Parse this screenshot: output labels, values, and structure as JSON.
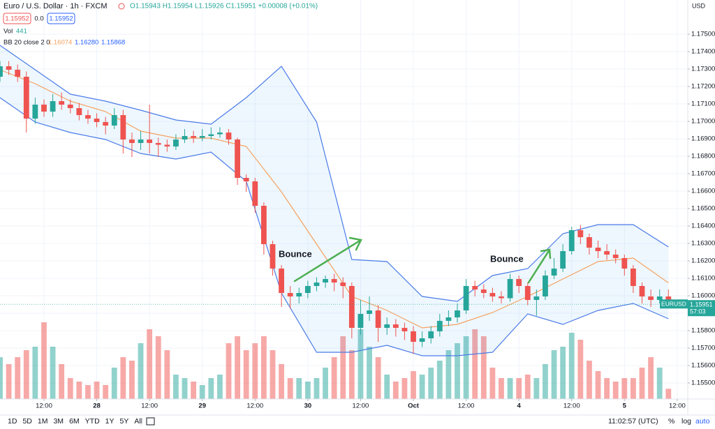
{
  "header": {
    "symbol": "Euro / U.S. Dollar · 1h · FXCM",
    "ohlc": "O1.15943 H1.15954 L1.15926 C1.15951 +0.00008 (+0.01%)",
    "bid": "1.15952",
    "spread": "0.0",
    "ask": "1.15952",
    "vol_label": "Vol",
    "bb_label": "BB 20 close 2 0",
    "bb_values": [
      "1.16074",
      "1.16280",
      "1.15868"
    ],
    "currency": "USD"
  },
  "price_tag": {
    "symbol": "EURUSD",
    "countdown": "57:03"
  },
  "toolbar": {
    "ranges": [
      "1D",
      "5D",
      "1M",
      "3M",
      "6M",
      "YTD",
      "1Y",
      "5Y",
      "All"
    ],
    "time": "11:02:57 (UTC)",
    "percent": "%",
    "log": "log",
    "auto": "auto"
  },
  "chart_data": {
    "type": "candlestick",
    "up_color": "#26a69a",
    "down_color": "#ef5350",
    "grid": true,
    "xlim": [
      0,
      78.2
    ],
    "ylim": [
      1.15408,
      1.17696
    ],
    "vlim": [
      0,
      4200
    ],
    "xticks": [
      {
        "value": 5,
        "label": "12:00"
      },
      {
        "value": 11,
        "label": "28"
      },
      {
        "value": 17,
        "label": "12:00"
      },
      {
        "value": 23,
        "label": "29"
      },
      {
        "value": 29,
        "label": "12:00"
      },
      {
        "value": 35,
        "label": "30"
      },
      {
        "value": 41,
        "label": "12:00"
      },
      {
        "value": 47,
        "label": "Oct"
      },
      {
        "value": 53,
        "label": "12:00"
      },
      {
        "value": 59,
        "label": "4"
      },
      {
        "value": 65,
        "label": "12:00"
      },
      {
        "value": 71,
        "label": "5"
      },
      {
        "value": 77,
        "label": "12:00"
      }
    ],
    "yticks": [
      {
        "value": 1.155,
        "label": "1.15500"
      },
      {
        "value": 1.156,
        "label": "1.15600"
      },
      {
        "value": 1.157,
        "label": "1.15700"
      },
      {
        "value": 1.158,
        "label": "1.15800"
      },
      {
        "value": 1.159,
        "label": "1.15900"
      },
      {
        "value": 1.16,
        "label": "1.16000"
      },
      {
        "value": 1.161,
        "label": "1.16100"
      },
      {
        "value": 1.162,
        "label": "1.16200"
      },
      {
        "value": 1.163,
        "label": "1.16300"
      },
      {
        "value": 1.164,
        "label": "1.16400"
      },
      {
        "value": 1.165,
        "label": "1.16500"
      },
      {
        "value": 1.166,
        "label": "1.16600"
      },
      {
        "value": 1.167,
        "label": "1.16700"
      },
      {
        "value": 1.168,
        "label": "1.16800"
      },
      {
        "value": 1.169,
        "label": "1.16900"
      },
      {
        "value": 1.17,
        "label": "1.17000"
      },
      {
        "value": 1.171,
        "label": "1.17100"
      },
      {
        "value": 1.172,
        "label": "1.17200"
      },
      {
        "value": 1.173,
        "label": "1.17300"
      },
      {
        "value": 1.174,
        "label": "1.17400"
      },
      {
        "value": 1.175,
        "label": "1.17500"
      }
    ],
    "open": [
      1.17256,
      1.17316,
      1.17296,
      1.17256,
      1.17016,
      1.17096,
      1.17056,
      1.17116,
      1.17096,
      1.17076,
      1.17036,
      1.17016,
      1.16996,
      1.16976,
      1.17036,
      1.16896,
      1.16876,
      1.16896,
      1.16876,
      1.16866,
      1.16856,
      1.16896,
      1.16916,
      1.16906,
      1.16916,
      1.16926,
      1.16936,
      1.16896,
      1.16676,
      1.16656,
      1.16516,
      1.16296,
      1.16156,
      1.16016,
      1.15996,
      1.16016,
      1.16056,
      1.16076,
      1.16096,
      1.16076,
      1.16056,
      1.15816,
      1.15896,
      1.15916,
      1.15816,
      1.15836,
      1.15816,
      1.15796,
      1.15736,
      1.15756,
      1.15796,
      1.15856,
      1.15876,
      1.15916,
      1.16056,
      1.16036,
      1.16016,
      1.15996,
      1.15986,
      1.16096,
      1.16056,
      1.15976,
      1.15996,
      1.16116,
      1.16156,
      1.16256,
      1.16376,
      1.16336,
      1.16276,
      1.16256,
      1.16236,
      1.16216,
      1.16156,
      1.16056,
      1.15996,
      1.15976,
      1.15996
    ],
    "high": [
      1.17346,
      1.17346,
      1.17326,
      1.17286,
      1.17136,
      1.17126,
      1.17156,
      1.17166,
      1.17126,
      1.17106,
      1.17066,
      1.17046,
      1.17026,
      1.17076,
      1.17066,
      1.16936,
      1.16946,
      1.17096,
      1.16906,
      1.16896,
      1.16926,
      1.16956,
      1.16946,
      1.16956,
      1.16966,
      1.16966,
      1.16956,
      1.16906,
      1.16696,
      1.16676,
      1.16536,
      1.16316,
      1.16176,
      1.16056,
      1.16046,
      1.16086,
      1.16106,
      1.16116,
      1.16126,
      1.16106,
      1.16076,
      1.15976,
      1.15996,
      1.15946,
      1.15876,
      1.15866,
      1.15846,
      1.15826,
      1.15796,
      1.15826,
      1.15896,
      1.15916,
      1.15956,
      1.16096,
      1.16086,
      1.16066,
      1.16046,
      1.16026,
      1.16126,
      1.16116,
      1.16076,
      1.16036,
      1.16146,
      1.16216,
      1.16296,
      1.16396,
      1.16406,
      1.16356,
      1.16316,
      1.16296,
      1.16266,
      1.16236,
      1.16176,
      1.16076,
      1.16036,
      1.16036,
      1.16036
    ],
    "low": [
      1.17226,
      1.17266,
      1.17226,
      1.16936,
      1.16986,
      1.17026,
      1.17026,
      1.17066,
      1.17046,
      1.17006,
      1.16986,
      1.16966,
      1.16926,
      1.16956,
      1.16816,
      1.16796,
      1.16836,
      1.16816,
      1.16796,
      1.16826,
      1.16836,
      1.16876,
      1.16876,
      1.16886,
      1.16896,
      1.16906,
      1.16866,
      1.16636,
      1.16596,
      1.16476,
      1.16236,
      1.16116,
      1.15936,
      1.15926,
      1.15956,
      1.15986,
      1.16026,
      1.16046,
      1.16026,
      1.15986,
      1.15756,
      1.15776,
      1.15856,
      1.15736,
      1.15776,
      1.15766,
      1.15746,
      1.15666,
      1.15706,
      1.15726,
      1.15766,
      1.15826,
      1.15846,
      1.15896,
      1.15996,
      1.15986,
      1.15966,
      1.15956,
      1.15966,
      1.16016,
      1.15946,
      1.15886,
      1.15976,
      1.16096,
      1.16136,
      1.16236,
      1.16296,
      1.16236,
      1.16216,
      1.16206,
      1.16186,
      1.16116,
      1.16016,
      1.15956,
      1.15936,
      1.15956,
      1.15926
    ],
    "close": [
      1.17316,
      1.17296,
      1.17256,
      1.17016,
      1.17096,
      1.17056,
      1.17116,
      1.17096,
      1.17076,
      1.17036,
      1.17016,
      1.16996,
      1.16976,
      1.17036,
      1.16896,
      1.16876,
      1.16896,
      1.16876,
      1.16866,
      1.16856,
      1.16896,
      1.16916,
      1.16906,
      1.16916,
      1.16926,
      1.16936,
      1.16896,
      1.16676,
      1.16656,
      1.16516,
      1.16296,
      1.16156,
      1.16016,
      1.15996,
      1.16016,
      1.16056,
      1.16076,
      1.16096,
      1.16076,
      1.16056,
      1.15816,
      1.15896,
      1.15916,
      1.15816,
      1.15836,
      1.15816,
      1.15796,
      1.15736,
      1.15756,
      1.15796,
      1.15856,
      1.15876,
      1.15916,
      1.16056,
      1.16036,
      1.16016,
      1.15996,
      1.15986,
      1.16096,
      1.16056,
      1.15976,
      1.15996,
      1.16116,
      1.16156,
      1.16256,
      1.16376,
      1.16336,
      1.16276,
      1.16256,
      1.16236,
      1.16216,
      1.16156,
      1.16056,
      1.15996,
      1.15976,
      1.15996,
      1.15951
    ],
    "volume": [
      1800,
      1500,
      1800,
      2100,
      2250,
      3300,
      2250,
      1500,
      900,
      750,
      600,
      750,
      600,
      1350,
      1800,
      1650,
      2400,
      3000,
      2700,
      2100,
      1050,
      900,
      750,
      600,
      900,
      1050,
      2400,
      2700,
      2100,
      2400,
      2700,
      2100,
      1500,
      900,
      900,
      750,
      900,
      1350,
      1800,
      2700,
      2100,
      3000,
      2250,
      1800,
      1050,
      750,
      900,
      1200,
      1050,
      1350,
      1650,
      2100,
      2400,
      2700,
      3000,
      2700,
      1350,
      900,
      900,
      900,
      1050,
      900,
      1500,
      2100,
      2250,
      2850,
      2550,
      1650,
      1200,
      900,
      750,
      900,
      900,
      1350,
      1800,
      1350,
      441
    ],
    "band_fill": "rgba(33,150,243,0.08)",
    "series": [
      {
        "color": "#4a7be8",
        "x": [
          0,
          4,
          8,
          12,
          16,
          20,
          24,
          28,
          32,
          36,
          40,
          44,
          48,
          52,
          56,
          60,
          64,
          68,
          72,
          76
        ],
        "values": [
          1.17436,
          1.17296,
          1.17156,
          1.17116,
          1.17064,
          1.17008,
          1.16984,
          1.17136,
          1.17316,
          1.16996,
          1.16208,
          1.16196,
          1.15996,
          1.15968,
          1.16116,
          1.16156,
          1.16356,
          1.16408,
          1.16408,
          1.1628
        ]
      },
      {
        "color": "#f4a261",
        "x": [
          0,
          4,
          8,
          12,
          16,
          20,
          24,
          28,
          32,
          36,
          40,
          44,
          48,
          52,
          56,
          60,
          64,
          68,
          72,
          76
        ],
        "values": [
          1.17296,
          1.17216,
          1.17116,
          1.17056,
          1.16944,
          1.16904,
          1.16904,
          1.16856,
          1.16596,
          1.16296,
          1.15996,
          1.15916,
          1.15816,
          1.15836,
          1.15904,
          1.15996,
          1.16096,
          1.16196,
          1.16216,
          1.16074
        ]
      },
      {
        "color": "#4a7be8",
        "x": [
          0,
          4,
          8,
          12,
          16,
          20,
          24,
          28,
          32,
          36,
          40,
          44,
          48,
          52,
          56,
          60,
          64,
          68,
          72,
          76
        ],
        "values": [
          1.17136,
          1.16996,
          1.16936,
          1.16896,
          1.16816,
          1.16784,
          1.16824,
          1.16656,
          1.16016,
          1.15676,
          1.15676,
          1.15716,
          1.15656,
          1.15656,
          1.15676,
          1.15896,
          1.15836,
          1.15916,
          1.15956,
          1.15868
        ]
      }
    ],
    "annotations": [
      "Bounce",
      "Bounce"
    ]
  }
}
